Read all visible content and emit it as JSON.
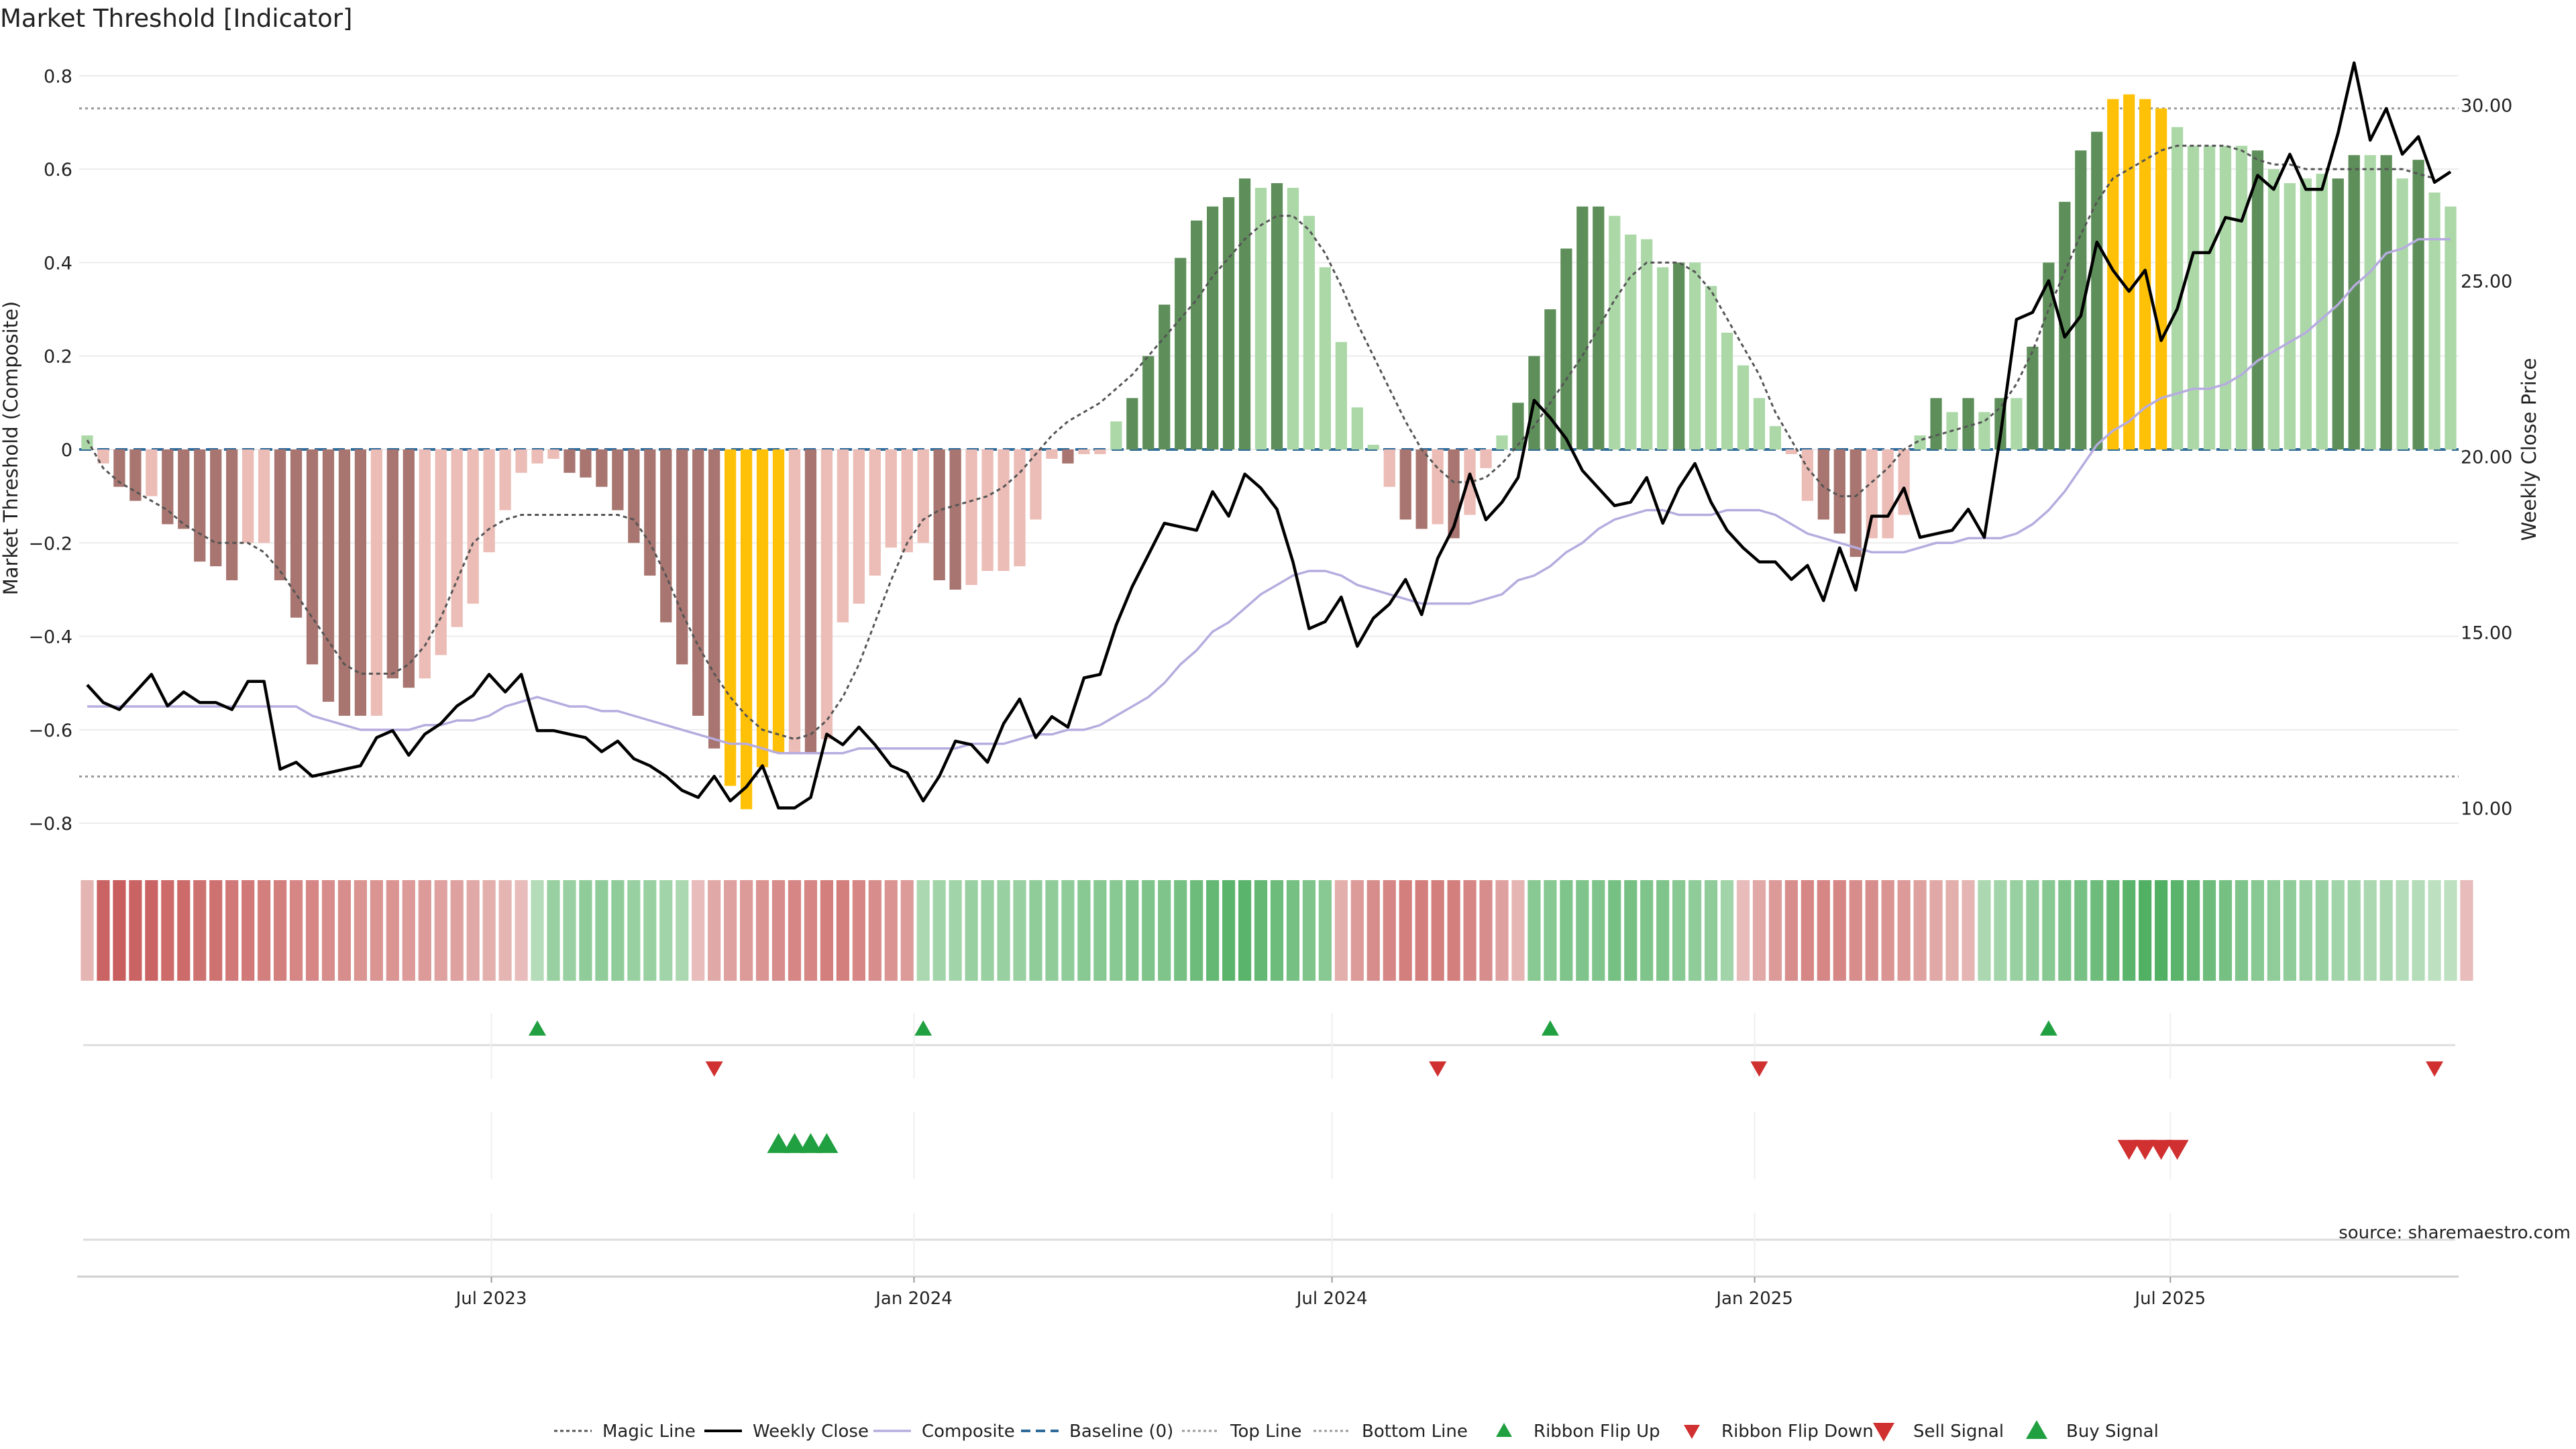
{
  "chart_data": {
    "type": "bar",
    "title": "Market Threshold [Indicator]",
    "ylabel": "Market Threshold (Composite)",
    "y2label": "Weekly Close Price",
    "source": "source: sharemaestro.com",
    "x_start": "2023-01-06",
    "x_step_days": 7,
    "ylim": [
      -0.85,
      0.85
    ],
    "y2lim": [
      8.9,
      31.5
    ],
    "yticks": [
      0.8,
      0.6,
      0.4,
      0.2,
      0,
      -0.2,
      -0.4,
      -0.6,
      -0.8
    ],
    "yticklabels": [
      "0.8",
      "0.6",
      "0.4",
      "0.2",
      "0",
      "−0.2",
      "−0.4",
      "−0.6",
      "−0.8"
    ],
    "y2ticks": [
      30,
      25,
      20,
      15,
      10
    ],
    "y2ticklabels": [
      "30.00",
      "25.00",
      "20.00",
      "15.00",
      "10.00"
    ],
    "xticks": [
      {
        "date": "2023-07-01",
        "label": "Jul 2023"
      },
      {
        "date": "2024-01-01",
        "label": "Jan 2024"
      },
      {
        "date": "2024-07-01",
        "label": "Jul 2024"
      },
      {
        "date": "2025-01-01",
        "label": "Jan 2025"
      },
      {
        "date": "2025-07-01",
        "label": "Jul 2025"
      }
    ],
    "top_line": 0.73,
    "bottom_line": -0.7,
    "baseline": 0,
    "composite_bars": [
      0.03,
      -0.03,
      -0.08,
      -0.11,
      -0.1,
      -0.16,
      -0.17,
      -0.24,
      -0.25,
      -0.28,
      -0.2,
      -0.2,
      -0.28,
      -0.36,
      -0.46,
      -0.54,
      -0.57,
      -0.57,
      -0.57,
      -0.49,
      -0.51,
      -0.49,
      -0.44,
      -0.38,
      -0.33,
      -0.22,
      -0.13,
      -0.05,
      -0.03,
      -0.02,
      -0.05,
      -0.06,
      -0.08,
      -0.13,
      -0.2,
      -0.27,
      -0.37,
      -0.46,
      -0.57,
      -0.64,
      -0.72,
      -0.77,
      -0.68,
      -0.65,
      -0.65,
      -0.65,
      -0.62,
      -0.37,
      -0.33,
      -0.27,
      -0.21,
      -0.22,
      -0.2,
      -0.28,
      -0.3,
      -0.29,
      -0.26,
      -0.26,
      -0.25,
      -0.15,
      -0.02,
      -0.03,
      -0.01,
      -0.01,
      0.06,
      0.11,
      0.2,
      0.31,
      0.41,
      0.49,
      0.52,
      0.54,
      0.58,
      0.56,
      0.57,
      0.56,
      0.5,
      0.39,
      0.23,
      0.09,
      0.01,
      -0.08,
      -0.15,
      -0.17,
      -0.16,
      -0.19,
      -0.14,
      -0.04,
      0.03,
      0.1,
      0.2,
      0.3,
      0.43,
      0.52,
      0.52,
      0.5,
      0.46,
      0.45,
      0.39,
      0.4,
      0.4,
      0.35,
      0.25,
      0.18,
      0.11,
      0.05,
      -0.01,
      -0.11,
      -0.15,
      -0.18,
      -0.23,
      -0.19,
      -0.19,
      -0.14,
      0.03,
      0.11,
      0.08,
      0.11,
      0.08,
      0.11,
      0.11,
      0.22,
      0.4,
      0.53,
      0.64,
      0.68,
      0.75,
      0.76,
      0.75,
      0.73,
      0.69,
      0.65,
      0.65,
      0.65,
      0.65,
      0.64,
      0.6,
      0.57,
      0.58,
      0.59,
      0.58,
      0.63,
      0.63,
      0.63,
      0.58,
      0.62,
      0.55,
      0.52
    ],
    "bar_classes": [
      "lg",
      "lr",
      "dr",
      "dr",
      "lr",
      "dr",
      "dr",
      "dr",
      "dr",
      "dr",
      "lr",
      "lr",
      "dr",
      "dr",
      "dr",
      "dr",
      "dr",
      "dr",
      "lr",
      "dr",
      "dr",
      "lr",
      "lr",
      "lr",
      "lr",
      "lr",
      "lr",
      "lr",
      "lr",
      "lr",
      "dr",
      "dr",
      "dr",
      "dr",
      "dr",
      "dr",
      "dr",
      "dr",
      "dr",
      "dr",
      "y",
      "y",
      "y",
      "y",
      "lr",
      "dr",
      "lr",
      "lr",
      "lr",
      "lr",
      "lr",
      "lr",
      "lr",
      "dr",
      "dr",
      "lr",
      "lr",
      "lr",
      "lr",
      "lr",
      "lr",
      "dr",
      "lr",
      "lr",
      "lg",
      "dg",
      "dg",
      "dg",
      "dg",
      "dg",
      "dg",
      "dg",
      "dg",
      "lg",
      "dg",
      "lg",
      "lg",
      "lg",
      "lg",
      "lg",
      "lg",
      "lr",
      "dr",
      "dr",
      "lr",
      "dr",
      "lr",
      "lr",
      "lg",
      "dg",
      "dg",
      "dg",
      "dg",
      "dg",
      "dg",
      "lg",
      "lg",
      "lg",
      "lg",
      "dg",
      "lg",
      "lg",
      "lg",
      "lg",
      "lg",
      "lg",
      "lr",
      "lr",
      "dr",
      "dr",
      "dr",
      "lr",
      "lr",
      "lr",
      "lg",
      "dg",
      "lg",
      "dg",
      "lg",
      "dg",
      "lg",
      "dg",
      "dg",
      "dg",
      "dg",
      "dg",
      "y",
      "y",
      "y",
      "y",
      "lg",
      "lg",
      "lg",
      "lg",
      "lg",
      "dg",
      "lg",
      "lg",
      "lg",
      "lg",
      "dg",
      "dg",
      "lg",
      "dg",
      "lg",
      "dg",
      "lg",
      "lg"
    ],
    "magic_line": [
      0.02,
      -0.04,
      -0.07,
      -0.09,
      -0.11,
      -0.13,
      -0.16,
      -0.18,
      -0.2,
      -0.2,
      -0.2,
      -0.22,
      -0.26,
      -0.31,
      -0.36,
      -0.41,
      -0.46,
      -0.48,
      -0.48,
      -0.48,
      -0.46,
      -0.42,
      -0.36,
      -0.28,
      -0.2,
      -0.17,
      -0.15,
      -0.14,
      -0.14,
      -0.14,
      -0.14,
      -0.14,
      -0.14,
      -0.14,
      -0.15,
      -0.2,
      -0.27,
      -0.35,
      -0.42,
      -0.48,
      -0.53,
      -0.57,
      -0.6,
      -0.61,
      -0.62,
      -0.61,
      -0.58,
      -0.53,
      -0.46,
      -0.37,
      -0.28,
      -0.2,
      -0.15,
      -0.13,
      -0.12,
      -0.11,
      -0.1,
      -0.08,
      -0.05,
      -0.01,
      0.03,
      0.06,
      0.08,
      0.1,
      0.13,
      0.16,
      0.2,
      0.24,
      0.28,
      0.32,
      0.37,
      0.41,
      0.45,
      0.48,
      0.5,
      0.5,
      0.47,
      0.42,
      0.35,
      0.27,
      0.2,
      0.13,
      0.06,
      0.0,
      -0.04,
      -0.07,
      -0.07,
      -0.06,
      -0.03,
      0.01,
      0.05,
      0.1,
      0.15,
      0.2,
      0.26,
      0.32,
      0.37,
      0.4,
      0.4,
      0.4,
      0.38,
      0.34,
      0.28,
      0.22,
      0.16,
      0.08,
      0.02,
      -0.04,
      -0.08,
      -0.1,
      -0.1,
      -0.07,
      -0.04,
      0.0,
      0.02,
      0.03,
      0.04,
      0.05,
      0.06,
      0.09,
      0.14,
      0.21,
      0.3,
      0.38,
      0.46,
      0.53,
      0.58,
      0.6,
      0.62,
      0.64,
      0.65,
      0.65,
      0.65,
      0.65,
      0.64,
      0.62,
      0.61,
      0.61,
      0.6,
      0.6,
      0.6,
      0.6,
      0.6,
      0.6,
      0.6,
      0.59,
      0.58
    ],
    "composite_line": [
      -0.55,
      -0.55,
      -0.55,
      -0.55,
      -0.55,
      -0.55,
      -0.55,
      -0.55,
      -0.55,
      -0.55,
      -0.55,
      -0.55,
      -0.55,
      -0.55,
      -0.57,
      -0.58,
      -0.59,
      -0.6,
      -0.6,
      -0.6,
      -0.6,
      -0.59,
      -0.59,
      -0.58,
      -0.58,
      -0.57,
      -0.55,
      -0.54,
      -0.53,
      -0.54,
      -0.55,
      -0.55,
      -0.56,
      -0.56,
      -0.57,
      -0.58,
      -0.59,
      -0.6,
      -0.61,
      -0.62,
      -0.63,
      -0.63,
      -0.64,
      -0.65,
      -0.65,
      -0.65,
      -0.65,
      -0.65,
      -0.64,
      -0.64,
      -0.64,
      -0.64,
      -0.64,
      -0.64,
      -0.64,
      -0.63,
      -0.63,
      -0.63,
      -0.62,
      -0.61,
      -0.61,
      -0.6,
      -0.6,
      -0.59,
      -0.57,
      -0.55,
      -0.53,
      -0.5,
      -0.46,
      -0.43,
      -0.39,
      -0.37,
      -0.34,
      -0.31,
      -0.29,
      -0.27,
      -0.26,
      -0.26,
      -0.27,
      -0.29,
      -0.3,
      -0.31,
      -0.32,
      -0.33,
      -0.33,
      -0.33,
      -0.33,
      -0.32,
      -0.31,
      -0.28,
      -0.27,
      -0.25,
      -0.22,
      -0.2,
      -0.17,
      -0.15,
      -0.14,
      -0.13,
      -0.13,
      -0.14,
      -0.14,
      -0.14,
      -0.13,
      -0.13,
      -0.13,
      -0.14,
      -0.16,
      -0.18,
      -0.19,
      -0.2,
      -0.21,
      -0.22,
      -0.22,
      -0.22,
      -0.21,
      -0.2,
      -0.2,
      -0.19,
      -0.19,
      -0.19,
      -0.18,
      -0.16,
      -0.13,
      -0.09,
      -0.04,
      0.01,
      0.04,
      0.06,
      0.09,
      0.11,
      0.12,
      0.13,
      0.13,
      0.14,
      0.16,
      0.19,
      0.21,
      0.23,
      0.25,
      0.28,
      0.31,
      0.35,
      0.38,
      0.42,
      0.43,
      0.45,
      0.45,
      0.45
    ],
    "weekly_close": [
      13.5,
      13.0,
      12.8,
      13.3,
      13.8,
      12.9,
      13.3,
      13.0,
      13.0,
      12.8,
      13.6,
      13.6,
      11.1,
      11.3,
      10.9,
      11.0,
      11.1,
      11.2,
      12.0,
      12.2,
      11.5,
      12.1,
      12.4,
      12.9,
      13.2,
      13.8,
      13.3,
      13.8,
      12.2,
      12.2,
      12.1,
      12.0,
      11.6,
      11.9,
      11.4,
      11.2,
      10.9,
      10.5,
      10.3,
      10.9,
      10.2,
      10.6,
      11.2,
      10.0,
      10.0,
      10.3,
      12.1,
      11.8,
      12.3,
      11.8,
      11.2,
      11.0,
      10.2,
      10.9,
      11.9,
      11.8,
      11.3,
      12.4,
      13.1,
      12.0,
      12.6,
      12.3,
      13.7,
      13.8,
      15.2,
      16.3,
      17.2,
      18.1,
      18.0,
      17.9,
      19.0,
      18.3,
      19.5,
      19.1,
      18.5,
      17.0,
      15.1,
      15.3,
      16.0,
      14.6,
      15.4,
      15.8,
      16.5,
      15.5,
      17.1,
      18.0,
      19.5,
      18.2,
      18.7,
      19.4,
      21.6,
      21.1,
      20.5,
      19.6,
      19.1,
      18.6,
      18.7,
      19.4,
      18.1,
      19.1,
      19.8,
      18.7,
      17.9,
      17.4,
      17.0,
      17.0,
      16.5,
      16.9,
      15.9,
      17.4,
      16.2,
      18.3,
      18.3,
      19.1,
      17.7,
      17.8,
      17.9,
      18.5,
      17.7,
      20.6,
      23.9,
      24.1,
      25.0,
      23.4,
      24.0,
      26.1,
      25.3,
      24.7,
      25.3,
      23.3,
      24.2,
      25.8,
      25.8,
      26.8,
      26.7,
      28.0,
      27.6,
      28.6,
      27.6,
      27.6,
      29.2,
      31.2,
      29.0,
      29.9,
      28.6,
      29.1,
      27.8,
      28.1
    ],
    "composite_strip": [
      -0.25,
      -0.85,
      -0.9,
      -0.85,
      -0.85,
      -0.8,
      -0.8,
      -0.75,
      -0.75,
      -0.7,
      -0.7,
      -0.65,
      -0.65,
      -0.6,
      -0.6,
      -0.55,
      -0.55,
      -0.5,
      -0.5,
      -0.5,
      -0.45,
      -0.45,
      -0.4,
      -0.4,
      -0.35,
      -0.3,
      -0.25,
      -0.2,
      0.25,
      0.4,
      0.4,
      0.45,
      0.45,
      0.45,
      0.4,
      0.4,
      0.35,
      0.3,
      -0.2,
      -0.35,
      -0.4,
      -0.45,
      -0.5,
      -0.55,
      -0.6,
      -0.6,
      -0.65,
      -0.65,
      -0.6,
      -0.55,
      -0.5,
      -0.45,
      0.3,
      0.35,
      0.35,
      0.4,
      0.4,
      0.4,
      0.4,
      0.45,
      0.45,
      0.45,
      0.5,
      0.5,
      0.5,
      0.55,
      0.55,
      0.55,
      0.6,
      0.65,
      0.7,
      0.75,
      0.75,
      0.7,
      0.65,
      0.6,
      0.55,
      0.5,
      -0.3,
      -0.45,
      -0.55,
      -0.6,
      -0.65,
      -0.65,
      -0.65,
      -0.65,
      -0.6,
      -0.55,
      -0.4,
      -0.25,
      0.5,
      0.5,
      0.55,
      0.55,
      0.55,
      0.6,
      0.6,
      0.55,
      0.55,
      0.5,
      0.45,
      0.45,
      0.35,
      -0.2,
      -0.35,
      -0.45,
      -0.55,
      -0.6,
      -0.6,
      -0.6,
      -0.55,
      -0.55,
      -0.5,
      -0.45,
      -0.4,
      -0.35,
      -0.3,
      -0.25,
      0.3,
      0.35,
      0.4,
      0.45,
      0.5,
      0.55,
      0.6,
      0.65,
      0.7,
      0.75,
      0.8,
      0.8,
      0.75,
      0.7,
      0.65,
      0.6,
      0.55,
      0.5,
      0.45,
      0.45,
      0.4,
      0.4,
      0.35,
      0.35,
      0.3,
      0.3,
      0.25,
      0.25,
      0.2,
      0.2,
      -0.2
    ],
    "ribbon_flip_up": [
      "2023-07-21",
      "2024-01-05",
      "2024-10-04",
      "2025-05-09"
    ],
    "ribbon_flip_down": [
      "2023-10-06",
      "2024-08-16",
      "2025-01-03",
      "2025-10-24"
    ],
    "buy_signals": [
      "2023-11-03",
      "2023-11-10",
      "2023-11-17",
      "2023-11-24"
    ],
    "sell_signals": [
      "2025-06-13",
      "2025-06-20",
      "2025-06-27",
      "2025-07-04"
    ],
    "colors": {
      "dark_green": "#5e8f5a",
      "light_green": "#acd8a8",
      "dark_red": "#a87570",
      "light_red": "#ecbcb6",
      "yellow": "#ffc107",
      "magic_line": "#555555",
      "weekly_close": "#000000",
      "composite": "#b6acdf",
      "baseline": "#2f6b9a",
      "guide_lines": "#999999",
      "flip_up": "#21a041",
      "flip_down": "#d03030"
    },
    "legend_placement": "bottom-center",
    "legend": [
      {
        "key": "magic",
        "label": "Magic Line"
      },
      {
        "key": "close",
        "label": "Weekly Close"
      },
      {
        "key": "composite",
        "label": "Composite"
      },
      {
        "key": "baseline",
        "label": "Baseline (0)"
      },
      {
        "key": "top",
        "label": "Top Line"
      },
      {
        "key": "bottom",
        "label": "Bottom Line"
      },
      {
        "key": "flipup",
        "label": "Ribbon Flip Up"
      },
      {
        "key": "flipdown",
        "label": "Ribbon Flip Down"
      },
      {
        "key": "sell",
        "label": "Sell Signal"
      },
      {
        "key": "buy",
        "label": "Buy Signal"
      }
    ]
  }
}
